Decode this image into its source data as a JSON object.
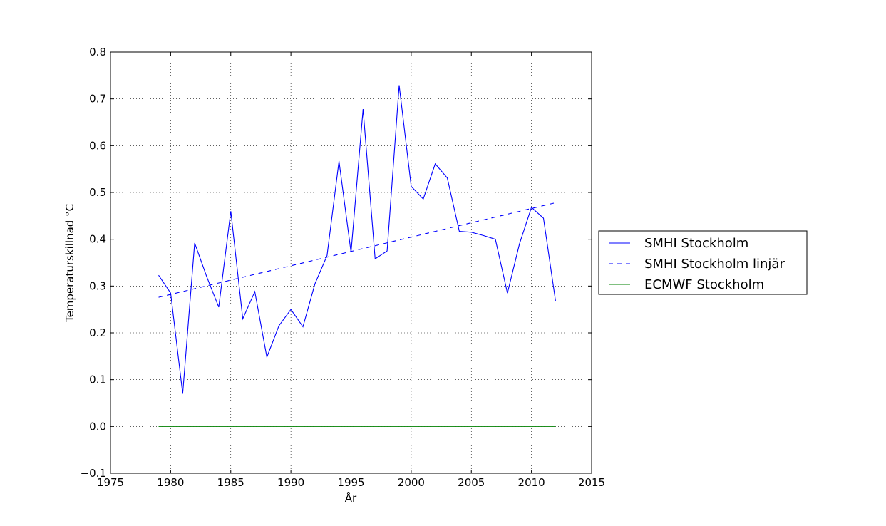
{
  "chart_data": {
    "type": "line",
    "title": "",
    "xlabel": "År",
    "ylabel": "Temperaturskillnad °C",
    "xlim": [
      1975,
      2015
    ],
    "ylim": [
      -0.1,
      0.8
    ],
    "xticks": [
      {
        "value": 1975,
        "label": "1975"
      },
      {
        "value": 1980,
        "label": "1980"
      },
      {
        "value": 1985,
        "label": "1985"
      },
      {
        "value": 1990,
        "label": "1990"
      },
      {
        "value": 1995,
        "label": "1995"
      },
      {
        "value": 2000,
        "label": "2000"
      },
      {
        "value": 2005,
        "label": "2005"
      },
      {
        "value": 2010,
        "label": "2010"
      },
      {
        "value": 2015,
        "label": "2015"
      }
    ],
    "yticks": [
      {
        "value": -0.1,
        "label": "−0.1"
      },
      {
        "value": 0.0,
        "label": "0.0"
      },
      {
        "value": 0.1,
        "label": "0.1"
      },
      {
        "value": 0.2,
        "label": "0.2"
      },
      {
        "value": 0.3,
        "label": "0.3"
      },
      {
        "value": 0.4,
        "label": "0.4"
      },
      {
        "value": 0.5,
        "label": "0.5"
      },
      {
        "value": 0.6,
        "label": "0.6"
      },
      {
        "value": 0.7,
        "label": "0.7"
      },
      {
        "value": 0.8,
        "label": "0.8"
      }
    ],
    "grid": true,
    "legend_position": "outside-right",
    "series": [
      {
        "name": "SMHI Stockholm",
        "style": "solid",
        "color": "#0000ff",
        "x": [
          1979,
          1980,
          1981,
          1982,
          1983,
          1984,
          1985,
          1986,
          1987,
          1988,
          1989,
          1990,
          1991,
          1992,
          1993,
          1994,
          1995,
          1996,
          1997,
          1998,
          1999,
          2000,
          2001,
          2002,
          2003,
          2004,
          2005,
          2006,
          2007,
          2008,
          2009,
          2010,
          2011,
          2012
        ],
        "y": [
          0.323,
          0.285,
          0.07,
          0.392,
          0.32,
          0.255,
          0.46,
          0.23,
          0.288,
          0.148,
          0.215,
          0.25,
          0.213,
          0.305,
          0.365,
          0.567,
          0.372,
          0.678,
          0.358,
          0.375,
          0.729,
          0.513,
          0.486,
          0.561,
          0.531,
          0.417,
          0.415,
          0.408,
          0.4,
          0.285,
          0.39,
          0.468,
          0.445,
          0.268
        ]
      },
      {
        "name": "SMHI Stockholm linjär",
        "style": "dashed",
        "color": "#0000ff",
        "x": [
          1979,
          2012
        ],
        "y": [
          0.276,
          0.478
        ]
      },
      {
        "name": "ECMWF Stockholm",
        "style": "solid",
        "color": "#008000",
        "x": [
          1979,
          2012
        ],
        "y": [
          0.0,
          0.0
        ]
      }
    ]
  }
}
